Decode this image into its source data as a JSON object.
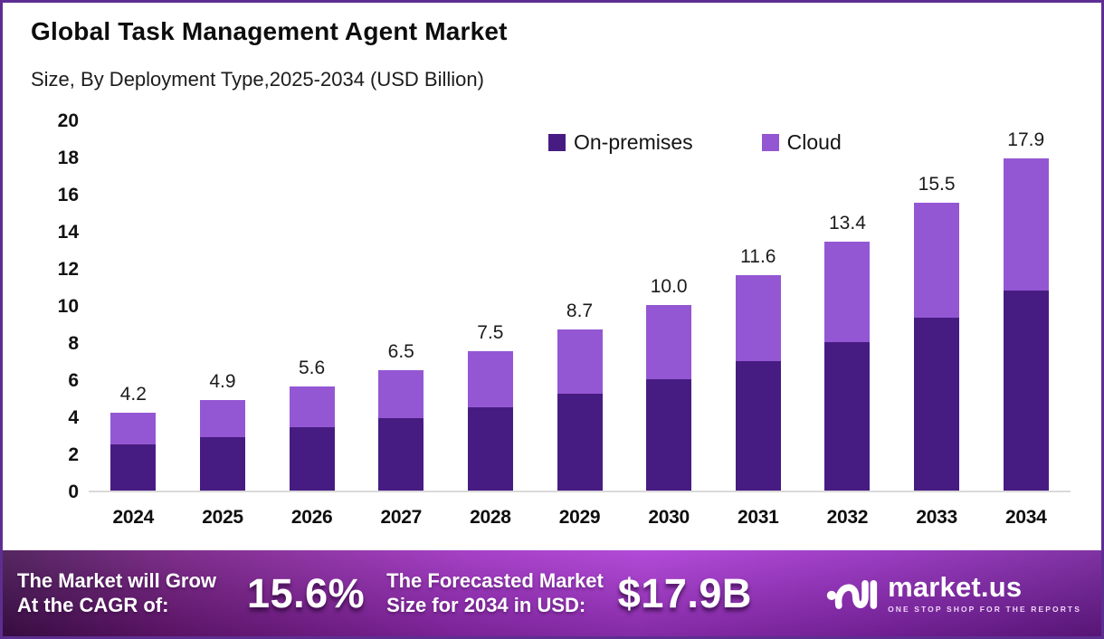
{
  "header": {
    "title": "Global Task Management Agent Market",
    "subtitle": "Size, By Deployment Type,2025-2034 (USD Billion)"
  },
  "colors": {
    "on_premises": "#471c82",
    "cloud": "#9457d3",
    "border": "#5d2e91",
    "axis_line": "#d9d9d9",
    "footer_gradient_start": "#420f4e",
    "footer_gradient_mid": "#aa37d4",
    "footer_gradient_end": "#6f1b96",
    "text_dark": "#111111",
    "text_light": "#ffffff"
  },
  "chart_data": {
    "type": "bar",
    "stacked": true,
    "title": "Global Task Management Agent Market Size, By Deployment Type, 2025-2034 (USD Billion)",
    "unit": "USD Billion",
    "categories": [
      "2024",
      "2025",
      "2026",
      "2027",
      "2028",
      "2029",
      "2030",
      "2031",
      "2032",
      "2033",
      "2034"
    ],
    "series": [
      {
        "name": "On-premises",
        "color": "#471c82",
        "values": [
          2.5,
          2.9,
          3.4,
          3.9,
          4.5,
          5.2,
          6.0,
          7.0,
          8.0,
          9.3,
          10.8
        ]
      },
      {
        "name": "Cloud",
        "color": "#9457d3",
        "values": [
          1.7,
          2.0,
          2.2,
          2.6,
          3.0,
          3.5,
          4.0,
          4.6,
          5.4,
          6.2,
          7.1
        ]
      }
    ],
    "totals": [
      4.2,
      4.9,
      5.6,
      6.5,
      7.5,
      8.7,
      10.0,
      11.6,
      13.4,
      15.5,
      17.9
    ],
    "totals_display": [
      "4.2",
      "4.9",
      "5.6",
      "6.5",
      "7.5",
      "8.7",
      "10.0",
      "11.6",
      "13.4",
      "15.5",
      "17.9"
    ],
    "ylim": [
      0,
      20
    ],
    "ytick_step": 2,
    "grid": false,
    "legend_position": "top"
  },
  "footer": {
    "cagr_label": [
      "The Market will Grow",
      "At the CAGR of:"
    ],
    "cagr_value": "15.6%",
    "forecast_label": [
      "The Forecasted Market",
      "Size for 2034 in USD:"
    ],
    "forecast_value": "$17.9B",
    "brand_name": "market.us",
    "brand_tagline": "ONE STOP SHOP FOR THE REPORTS"
  }
}
